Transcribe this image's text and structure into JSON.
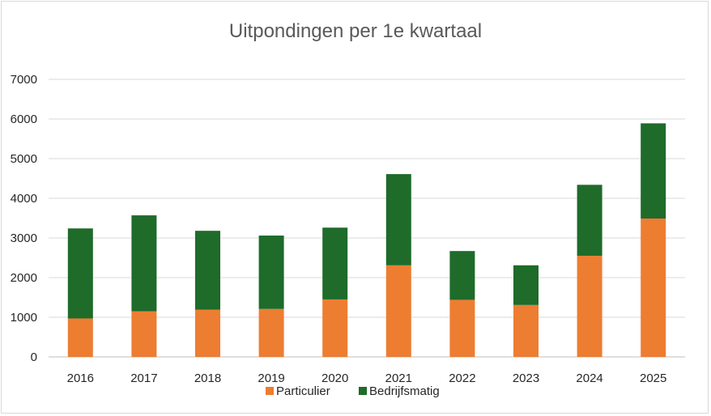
{
  "chart_data": {
    "type": "bar",
    "stacked": true,
    "title": "Uitpondingen per 1e kwartaal",
    "xlabel": "",
    "ylabel": "",
    "categories": [
      "2016",
      "2017",
      "2018",
      "2019",
      "2020",
      "2021",
      "2022",
      "2023",
      "2024",
      "2025"
    ],
    "series": [
      {
        "name": "Particulier",
        "color": "#ED7D31",
        "values": [
          970,
          1150,
          1190,
          1210,
          1450,
          2310,
          1440,
          1310,
          2550,
          3490
        ]
      },
      {
        "name": "Bedrijfsmatig",
        "color": "#1E6B2A",
        "values": [
          2270,
          2420,
          1990,
          1850,
          1810,
          2300,
          1230,
          1000,
          1790,
          2400
        ]
      }
    ],
    "ylim": [
      0,
      7000
    ],
    "yticks": [
      "0",
      "1000",
      "2000",
      "3000",
      "4000",
      "5000",
      "6000",
      "7000"
    ],
    "grid": true,
    "legend": "bottom"
  }
}
